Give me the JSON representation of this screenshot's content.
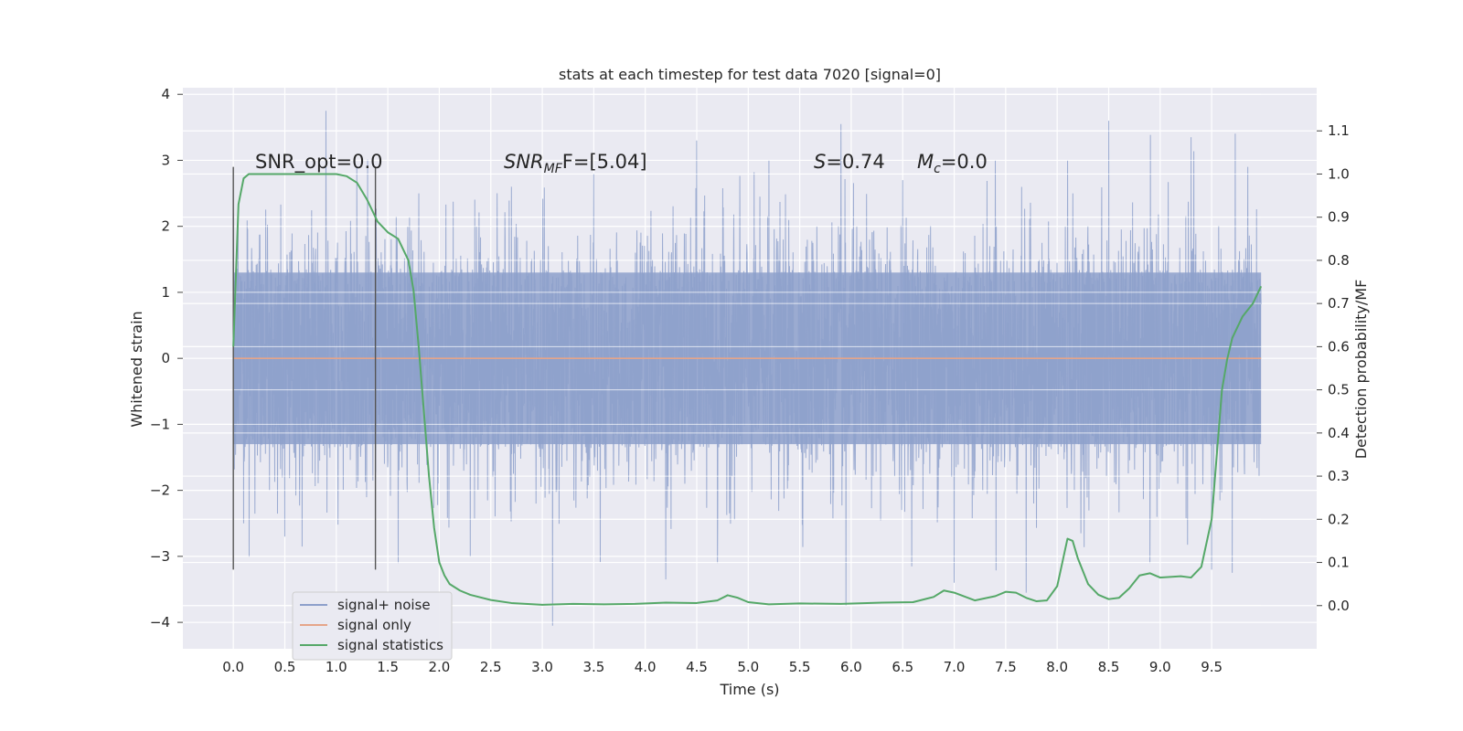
{
  "chart_data": {
    "type": "line",
    "title": "stats at each timestep for test data 7020 [signal=0]",
    "xlabel": "Time (s)",
    "ylabel": "Whitened strain",
    "y2label": "Detection probability/MF",
    "xlim": [
      -0.49,
      10.52
    ],
    "ylim": [
      -4.4,
      4.1
    ],
    "y2lim": [
      -0.1,
      1.2
    ],
    "xticks": [
      "0.0",
      "0.5",
      "1.0",
      "1.5",
      "2.0",
      "2.5",
      "3.0",
      "3.5",
      "4.0",
      "4.5",
      "5.0",
      "5.5",
      "6.0",
      "6.5",
      "7.0",
      "7.5",
      "8.0",
      "8.5",
      "9.0",
      "9.5"
    ],
    "yticks": [
      "4",
      "3",
      "2",
      "1",
      "0",
      "−1",
      "−2",
      "−3",
      "−4"
    ],
    "y2ticks": [
      "1.1",
      "1.0",
      "0.9",
      "0.8",
      "0.7",
      "0.6",
      "0.5",
      "0.4",
      "0.3",
      "0.2",
      "0.1",
      "0.0"
    ],
    "grid": true,
    "legend_position": "lower-left",
    "annotations": {
      "snr_opt": "SNR_opt=0.0",
      "snr_mf_main": "SNR",
      "snr_mf_sub": "MF",
      "snr_mf_value": "F=[5.04]",
      "s_var": "S",
      "s_value": "=0.74",
      "mc_var": "M",
      "mc_sub": "c",
      "mc_value": "=0.0"
    },
    "series": [
      {
        "name": "signal+ noise",
        "color": "#8da0cb",
        "axis": "left",
        "x_range": [
          0.0,
          9.98
        ],
        "sample_count": 4096,
        "band_range": [
          -1.3,
          1.3
        ],
        "peaks": [
          {
            "x": 0.9,
            "y": 3.75
          },
          {
            "x": 0.0,
            "y": 2.2
          },
          {
            "x": 0.1,
            "y": -2.5
          },
          {
            "x": 0.5,
            "y": -2.7
          },
          {
            "x": 1.2,
            "y": 2.9
          },
          {
            "x": 1.6,
            "y": -3.1
          },
          {
            "x": 1.8,
            "y": 2.5
          },
          {
            "x": 2.3,
            "y": -3.0
          },
          {
            "x": 2.7,
            "y": 2.6
          },
          {
            "x": 3.1,
            "y": -4.05
          },
          {
            "x": 3.5,
            "y": 2.8
          },
          {
            "x": 4.2,
            "y": -3.35
          },
          {
            "x": 4.5,
            "y": 3.3
          },
          {
            "x": 4.7,
            "y": -3.1
          },
          {
            "x": 5.2,
            "y": 3.0
          },
          {
            "x": 5.9,
            "y": 3.55
          },
          {
            "x": 5.95,
            "y": -3.75
          },
          {
            "x": 6.5,
            "y": 2.7
          },
          {
            "x": 7.0,
            "y": -3.4
          },
          {
            "x": 7.4,
            "y": 3.0
          },
          {
            "x": 7.7,
            "y": -3.55
          },
          {
            "x": 8.1,
            "y": 3.0
          },
          {
            "x": 8.5,
            "y": 3.6
          },
          {
            "x": 8.9,
            "y": -3.1
          },
          {
            "x": 9.3,
            "y": 3.35
          },
          {
            "x": 9.5,
            "y": -3.2
          },
          {
            "x": 9.7,
            "y": -3.25
          },
          {
            "x": 9.85,
            "y": 2.9
          }
        ]
      },
      {
        "name": "signal only",
        "color": "#e5a58a",
        "axis": "left",
        "x": [
          0.0,
          9.98
        ],
        "y": [
          0.0,
          0.0
        ]
      },
      {
        "name": "signal statistics",
        "color": "#55a868",
        "axis": "right",
        "x": [
          0.0,
          0.05,
          0.1,
          0.15,
          0.25,
          0.4,
          0.6,
          0.8,
          1.0,
          1.1,
          1.2,
          1.3,
          1.4,
          1.5,
          1.6,
          1.7,
          1.75,
          1.8,
          1.85,
          1.9,
          1.95,
          2.0,
          2.05,
          2.1,
          2.2,
          2.3,
          2.5,
          2.7,
          3.0,
          3.3,
          3.6,
          3.9,
          4.2,
          4.5,
          4.7,
          4.8,
          4.9,
          5.0,
          5.2,
          5.5,
          5.9,
          6.3,
          6.6,
          6.8,
          6.9,
          7.0,
          7.2,
          7.4,
          7.5,
          7.6,
          7.7,
          7.8,
          7.9,
          8.0,
          8.05,
          8.1,
          8.15,
          8.2,
          8.3,
          8.4,
          8.5,
          8.6,
          8.7,
          8.8,
          8.9,
          9.0,
          9.2,
          9.3,
          9.4,
          9.5,
          9.55,
          9.6,
          9.65,
          9.7,
          9.8,
          9.9,
          9.98
        ],
        "y": [
          0.6,
          0.93,
          0.99,
          1.0,
          1.0,
          1.0,
          1.0,
          1.0,
          1.0,
          0.995,
          0.98,
          0.94,
          0.89,
          0.865,
          0.85,
          0.8,
          0.73,
          0.6,
          0.45,
          0.3,
          0.18,
          0.1,
          0.07,
          0.05,
          0.035,
          0.025,
          0.013,
          0.006,
          0.002,
          0.004,
          0.003,
          0.004,
          0.007,
          0.006,
          0.012,
          0.024,
          0.018,
          0.008,
          0.003,
          0.005,
          0.004,
          0.007,
          0.008,
          0.02,
          0.035,
          0.03,
          0.012,
          0.022,
          0.032,
          0.03,
          0.018,
          0.01,
          0.012,
          0.045,
          0.1,
          0.155,
          0.15,
          0.11,
          0.05,
          0.025,
          0.015,
          0.018,
          0.04,
          0.07,
          0.075,
          0.065,
          0.068,
          0.065,
          0.09,
          0.2,
          0.35,
          0.5,
          0.57,
          0.62,
          0.67,
          0.7,
          0.74
        ]
      }
    ],
    "markers": [
      {
        "x": 0.0,
        "y_range": [
          -3.2,
          2.9
        ],
        "color": "#555555"
      },
      {
        "x": 1.38,
        "y_range": [
          -3.2,
          2.9
        ],
        "color": "#555555"
      }
    ]
  }
}
